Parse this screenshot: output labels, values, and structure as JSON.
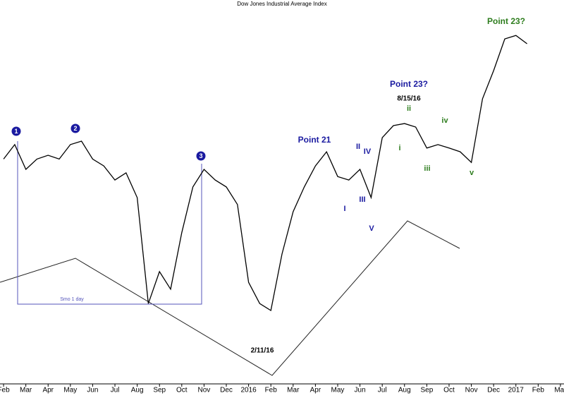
{
  "chart_data": {
    "type": "line",
    "title": "Dow Jones Industrial Average Index",
    "x": [
      0,
      0.5,
      1,
      1.5,
      2,
      2.5,
      3,
      3.5,
      4,
      4.5,
      5,
      5.5,
      6,
      6.5,
      7,
      7.5,
      8,
      8.5,
      9,
      9.5,
      10,
      10.5,
      11,
      11.5,
      12,
      12.5,
      13,
      13.5,
      14,
      14.5,
      15,
      15.5,
      16,
      16.5,
      17,
      17.5,
      18,
      18.5,
      19,
      19.5,
      20,
      20.5,
      21,
      21.5,
      22,
      22.5,
      23,
      23.5
    ],
    "series": [
      {
        "name": "Dow Jones Industrial Average",
        "color": "#000000",
        "values": [
          18130,
          18340,
          17980,
          18130,
          18185,
          18130,
          18340,
          18390,
          18130,
          18030,
          17825,
          17930,
          17570,
          16030,
          16495,
          16240,
          17060,
          17725,
          17980,
          17825,
          17725,
          17470,
          16340,
          16030,
          15930,
          16750,
          17365,
          17725,
          18030,
          18235,
          17875,
          17825,
          17980,
          17570,
          18440,
          18615,
          18645,
          18595,
          18290,
          18340,
          18290,
          18235,
          18080,
          19005,
          19415,
          19875,
          19925,
          19805
        ]
      }
    ],
    "xlim": [
      -0.16,
      25.16
    ],
    "ylim": [
      14905,
      20440
    ],
    "xticks": [
      {
        "value": 0,
        "label": "Feb"
      },
      {
        "value": 1,
        "label": "Mar"
      },
      {
        "value": 2,
        "label": "Apr"
      },
      {
        "value": 3,
        "label": "May"
      },
      {
        "value": 4,
        "label": "Jun"
      },
      {
        "value": 5,
        "label": "Jul"
      },
      {
        "value": 6,
        "label": "Aug"
      },
      {
        "value": 7,
        "label": "Sep"
      },
      {
        "value": 8,
        "label": "Oct"
      },
      {
        "value": 9,
        "label": "Nov"
      },
      {
        "value": 10,
        "label": "Dec"
      },
      {
        "value": 11,
        "label": "2016"
      },
      {
        "value": 12,
        "label": "Feb"
      },
      {
        "value": 13,
        "label": "Mar"
      },
      {
        "value": 14,
        "label": "Apr"
      },
      {
        "value": 15,
        "label": "May"
      },
      {
        "value": 16,
        "label": "Jun"
      },
      {
        "value": 17,
        "label": "Jul"
      },
      {
        "value": 18,
        "label": "Aug"
      },
      {
        "value": 19,
        "label": "Sep"
      },
      {
        "value": 20,
        "label": "Oct"
      },
      {
        "value": 21,
        "label": "Nov"
      },
      {
        "value": 22,
        "label": "Dec"
      },
      {
        "value": 23,
        "label": "2017"
      },
      {
        "value": 24,
        "label": "Feb"
      },
      {
        "value": 25,
        "label": "Mar"
      }
    ],
    "annotations": [
      {
        "text": "1",
        "color": "#1a1aa0"
      },
      {
        "text": "2",
        "color": "#1a1aa0"
      },
      {
        "text": "3",
        "color": "#1a1aa0"
      },
      {
        "text": "Point 21",
        "color": "#1a1aa0"
      },
      {
        "text": "Point 23?",
        "color": "#1a1aa0"
      },
      {
        "text": "8/15/16",
        "color": "#000000"
      },
      {
        "text": "Point 23?",
        "color": "#2e7d1e"
      },
      {
        "text": "I",
        "color": "#1a1aa0"
      },
      {
        "text": "II",
        "color": "#1a1aa0"
      },
      {
        "text": "III",
        "color": "#1a1aa0"
      },
      {
        "text": "IV",
        "color": "#1a1aa0"
      },
      {
        "text": "V",
        "color": "#1a1aa0"
      },
      {
        "text": "i",
        "color": "#2e7d1e"
      },
      {
        "text": "ii",
        "color": "#2e7d1e"
      },
      {
        "text": "iii",
        "color": "#2e7d1e"
      },
      {
        "text": "iv",
        "color": "#2e7d1e"
      },
      {
        "text": "v",
        "color": "#2e7d1e"
      },
      {
        "text": "2/11/16",
        "color": "#000000"
      },
      {
        "text": "Smo 1 day",
        "color": "#5555bb"
      }
    ]
  }
}
